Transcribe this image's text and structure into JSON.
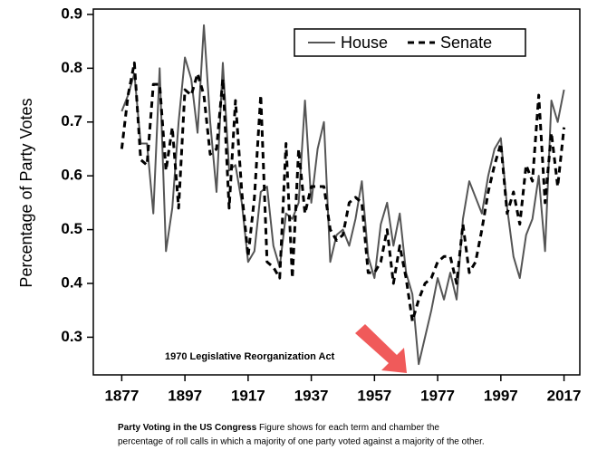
{
  "chart_data": {
    "type": "line",
    "ylabel": "Percentage of Party Votes",
    "x": [
      1877,
      1879,
      1881,
      1883,
      1885,
      1887,
      1889,
      1891,
      1893,
      1895,
      1897,
      1899,
      1901,
      1903,
      1905,
      1907,
      1909,
      1911,
      1913,
      1915,
      1917,
      1919,
      1921,
      1923,
      1925,
      1927,
      1929,
      1931,
      1933,
      1935,
      1937,
      1939,
      1941,
      1943,
      1945,
      1947,
      1949,
      1951,
      1953,
      1955,
      1957,
      1959,
      1961,
      1963,
      1965,
      1967,
      1969,
      1971,
      1973,
      1975,
      1977,
      1979,
      1981,
      1983,
      1985,
      1987,
      1989,
      1991,
      1993,
      1995,
      1997,
      1999,
      2001,
      2003,
      2005,
      2007,
      2009,
      2011,
      2013,
      2015,
      2017
    ],
    "series": [
      {
        "name": "House",
        "color": "#555555",
        "style": "solid",
        "values": [
          0.72,
          0.75,
          0.79,
          0.66,
          0.66,
          0.53,
          0.8,
          0.46,
          0.54,
          0.7,
          0.82,
          0.78,
          0.68,
          0.88,
          0.7,
          0.57,
          0.81,
          0.61,
          0.62,
          0.55,
          0.44,
          0.46,
          0.57,
          0.58,
          0.47,
          0.43,
          0.53,
          0.52,
          0.55,
          0.74,
          0.55,
          0.65,
          0.7,
          0.44,
          0.49,
          0.5,
          0.47,
          0.52,
          0.59,
          0.45,
          0.41,
          0.51,
          0.55,
          0.47,
          0.53,
          0.42,
          0.38,
          0.25,
          0.3,
          0.35,
          0.41,
          0.37,
          0.42,
          0.37,
          0.52,
          0.59,
          0.56,
          0.53,
          0.6,
          0.65,
          0.67,
          0.54,
          0.45,
          0.41,
          0.49,
          0.52,
          0.6,
          0.46,
          0.74,
          0.7,
          0.76
        ]
      },
      {
        "name": "Senate",
        "color": "#000000",
        "style": "dashed",
        "values": [
          0.65,
          0.75,
          0.81,
          0.63,
          0.62,
          0.77,
          0.77,
          0.61,
          0.69,
          0.54,
          0.76,
          0.75,
          0.79,
          0.75,
          0.64,
          0.65,
          0.78,
          0.54,
          0.74,
          0.57,
          0.45,
          0.56,
          0.75,
          0.44,
          0.43,
          0.41,
          0.66,
          0.41,
          0.65,
          0.53,
          0.58,
          0.58,
          0.58,
          0.5,
          0.48,
          0.49,
          0.55,
          0.56,
          0.55,
          0.42,
          0.42,
          0.44,
          0.5,
          0.4,
          0.47,
          0.41,
          0.33,
          0.37,
          0.4,
          0.41,
          0.44,
          0.45,
          0.45,
          0.4,
          0.51,
          0.42,
          0.44,
          0.5,
          0.57,
          0.62,
          0.66,
          0.53,
          0.57,
          0.51,
          0.62,
          0.59,
          0.75,
          0.55,
          0.68,
          0.58,
          0.69
        ]
      }
    ],
    "xlim": [
      1868,
      2022
    ],
    "xticks": [
      1877,
      1897,
      1917,
      1937,
      1957,
      1977,
      1997,
      2017
    ],
    "ylim": [
      0.23,
      0.91
    ],
    "yticks": [
      0.3,
      0.4,
      0.5,
      0.6,
      0.7,
      0.8,
      0.9
    ],
    "legend": "upper right",
    "annotation": "1970 Legislative Reorganization Act",
    "annotation_color": "#f05a5a",
    "caption_title": "Party Voting in the US Congress",
    "caption": [
      "Figure shows for each term and chamber the",
      "percentage of roll calls in which a majority of one party voted against a majority of the other."
    ]
  }
}
